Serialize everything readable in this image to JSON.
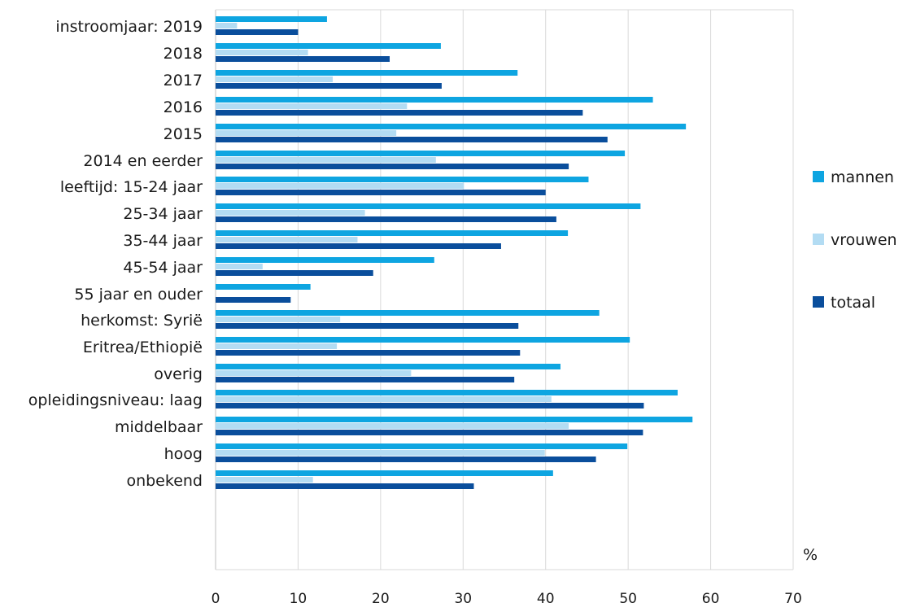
{
  "chart_data": {
    "type": "bar",
    "orientation": "horizontal",
    "categories": [
      "instroomjaar: 2019",
      "2018",
      "2017",
      "2016",
      "2015",
      "2014 en eerder",
      "leeftijd: 15-24  jaar",
      "25-34 jaar",
      "35-44  jaar",
      "45-54 jaar",
      "55 jaar en ouder",
      "herkomst: Syrië",
      "Eritrea/Ethiopië",
      "overig",
      "opleidingsniveau: laag",
      "middelbaar",
      "hoog",
      "onbekend"
    ],
    "groups": [
      {
        "categories": [
          0,
          1,
          2,
          3,
          4,
          5
        ]
      },
      {
        "categories": [
          6,
          7,
          8,
          9,
          10
        ]
      },
      {
        "categories": [
          11,
          12,
          13
        ]
      },
      {
        "categories": [
          14,
          15,
          16,
          17
        ]
      }
    ],
    "series": [
      {
        "name": "mannen",
        "color": "#0ea5e1",
        "values": [
          13.5,
          27.3,
          36.6,
          53.0,
          57.0,
          49.6,
          45.2,
          51.5,
          42.7,
          26.5,
          11.5,
          46.5,
          50.2,
          41.8,
          56.0,
          57.8,
          49.9,
          40.9
        ]
      },
      {
        "name": "vrouwen",
        "color": "#b3dcf3",
        "values": [
          2.6,
          11.2,
          14.2,
          23.2,
          21.9,
          26.7,
          30.1,
          18.1,
          17.2,
          5.7,
          0,
          15.1,
          14.7,
          23.7,
          40.7,
          42.8,
          39.9,
          11.8
        ]
      },
      {
        "name": "totaal",
        "color": "#0a4e9c",
        "values": [
          10.0,
          21.1,
          27.4,
          44.5,
          47.5,
          42.8,
          40.0,
          41.3,
          34.6,
          19.1,
          9.1,
          36.7,
          36.9,
          36.2,
          51.9,
          51.8,
          46.1,
          31.3
        ]
      }
    ],
    "xlim": [
      0,
      70
    ],
    "xticks": [
      0,
      10,
      20,
      30,
      40,
      50,
      60,
      70
    ],
    "unit": "%",
    "grid": "vertical",
    "legend_position": "right"
  }
}
